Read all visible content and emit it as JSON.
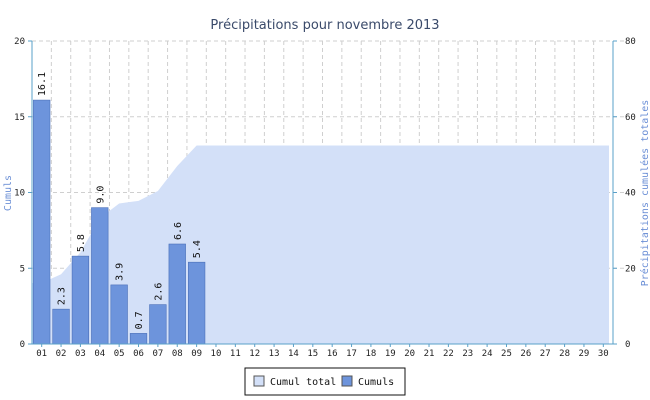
{
  "chart_data": {
    "type": "bar",
    "title": "Précipitations pour novembre 2013",
    "ylabel_left": "Cumuls",
    "ylabel_right": "Précipitations cumulées totales",
    "categories": [
      "01",
      "02",
      "03",
      "04",
      "05",
      "06",
      "07",
      "08",
      "09",
      "10",
      "11",
      "12",
      "13",
      "14",
      "15",
      "16",
      "17",
      "18",
      "19",
      "20",
      "21",
      "22",
      "23",
      "24",
      "25",
      "26",
      "27",
      "28",
      "29",
      "30"
    ],
    "ylim_left": [
      0,
      20
    ],
    "yticks_left": [
      0,
      5,
      10,
      15,
      20
    ],
    "ylim_right": [
      0,
      80
    ],
    "yticks_right": [
      0,
      20,
      40,
      60,
      80
    ],
    "grid": true,
    "legend_position": "bottom",
    "series": [
      {
        "name": "Cumuls",
        "type": "bar",
        "axis": "left",
        "color": "#6d94dc",
        "values": [
          16.1,
          2.3,
          5.8,
          9.0,
          3.9,
          0.7,
          2.6,
          6.6,
          5.4,
          0,
          0,
          0,
          0,
          0,
          0,
          0,
          0,
          0,
          0,
          0,
          0,
          0,
          0,
          0,
          0,
          0,
          0,
          0,
          0,
          0
        ],
        "labels": [
          "16.1",
          "2.3",
          "5.8",
          "9.0",
          "3.9",
          "0.7",
          "2.6",
          "6.6",
          "5.4"
        ]
      },
      {
        "name": "Cumul total",
        "type": "area",
        "axis": "right",
        "color": "#d3e0f8",
        "values": [
          16.1,
          18.4,
          24.2,
          33.2,
          37.1,
          37.8,
          40.4,
          47.0,
          52.4,
          52.4,
          52.4,
          52.4,
          52.4,
          52.4,
          52.4,
          52.4,
          52.4,
          52.4,
          52.4,
          52.4,
          52.4,
          52.4,
          52.4,
          52.4,
          52.4,
          52.4,
          52.4,
          52.4,
          52.4,
          52.4
        ]
      }
    ],
    "legend": [
      "Cumul total",
      "Cumuls"
    ]
  }
}
